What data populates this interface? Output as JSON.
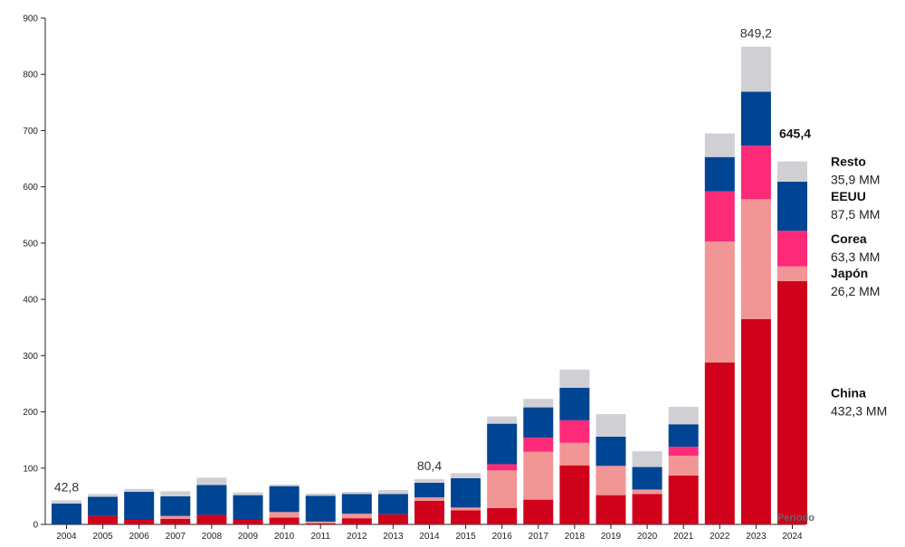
{
  "chart_data": {
    "type": "bar",
    "stacked": true,
    "x_axis_label": "Periodo",
    "ylim": [
      0,
      900
    ],
    "yticks": [
      0,
      100,
      200,
      300,
      400,
      500,
      600,
      700,
      800,
      900
    ],
    "categories": [
      "2004",
      "2005",
      "2006",
      "2007",
      "2008",
      "2009",
      "2010",
      "2011",
      "2012",
      "2013",
      "2014",
      "2015",
      "2016",
      "2017",
      "2018",
      "2019",
      "2020",
      "2021",
      "2022",
      "2023",
      "2024"
    ],
    "series": [
      {
        "name": "China",
        "color": "#d0021b",
        "values": [
          0,
          15,
          8,
          10,
          17,
          8,
          12,
          2,
          11,
          18,
          42,
          25,
          29,
          44,
          105,
          52,
          54,
          87,
          288,
          365,
          432.3
        ]
      },
      {
        "name": "Japón",
        "color": "#f29595",
        "values": [
          0,
          0,
          0,
          5,
          0,
          0,
          10,
          3,
          8,
          0,
          6,
          5,
          67,
          85,
          40,
          52,
          8,
          35,
          215,
          213,
          26.2
        ]
      },
      {
        "name": "Corea",
        "color": "#fd2b77",
        "values": [
          0,
          0,
          0,
          0,
          0,
          0,
          0,
          0,
          0,
          0,
          0,
          0,
          11,
          25,
          40,
          0,
          0,
          16,
          89,
          95,
          63.3
        ]
      },
      {
        "name": "EEUU",
        "color": "#004494",
        "values": [
          37,
          34,
          50,
          35,
          53,
          44,
          46,
          46,
          35,
          36,
          26,
          52,
          72,
          54,
          58,
          52,
          40,
          40,
          61,
          96,
          87.5
        ]
      },
      {
        "name": "Resto",
        "color": "#d0cfd4",
        "values": [
          5.8,
          5,
          5,
          9,
          13,
          5,
          3,
          4,
          4,
          7,
          6.4,
          9,
          13,
          15,
          32,
          40,
          28,
          31,
          42,
          80.2,
          35.9
        ]
      }
    ],
    "total_labels": [
      {
        "category": "2004",
        "text": "42,8"
      },
      {
        "category": "2014",
        "text": "80,4"
      },
      {
        "category": "2023",
        "text": "849,2"
      },
      {
        "category": "2024",
        "text": "645,4"
      }
    ],
    "legend": [
      {
        "name": "Resto",
        "value_text": "35,9 MM"
      },
      {
        "name": "EEUU",
        "value_text": "87,5 MM"
      },
      {
        "name": "Corea",
        "value_text": "63,3 MM"
      },
      {
        "name": "Japón",
        "value_text": "26,2 MM"
      },
      {
        "name": "China",
        "value_text": "432,3 MM"
      }
    ],
    "legend_placement": "right",
    "grid": false
  }
}
